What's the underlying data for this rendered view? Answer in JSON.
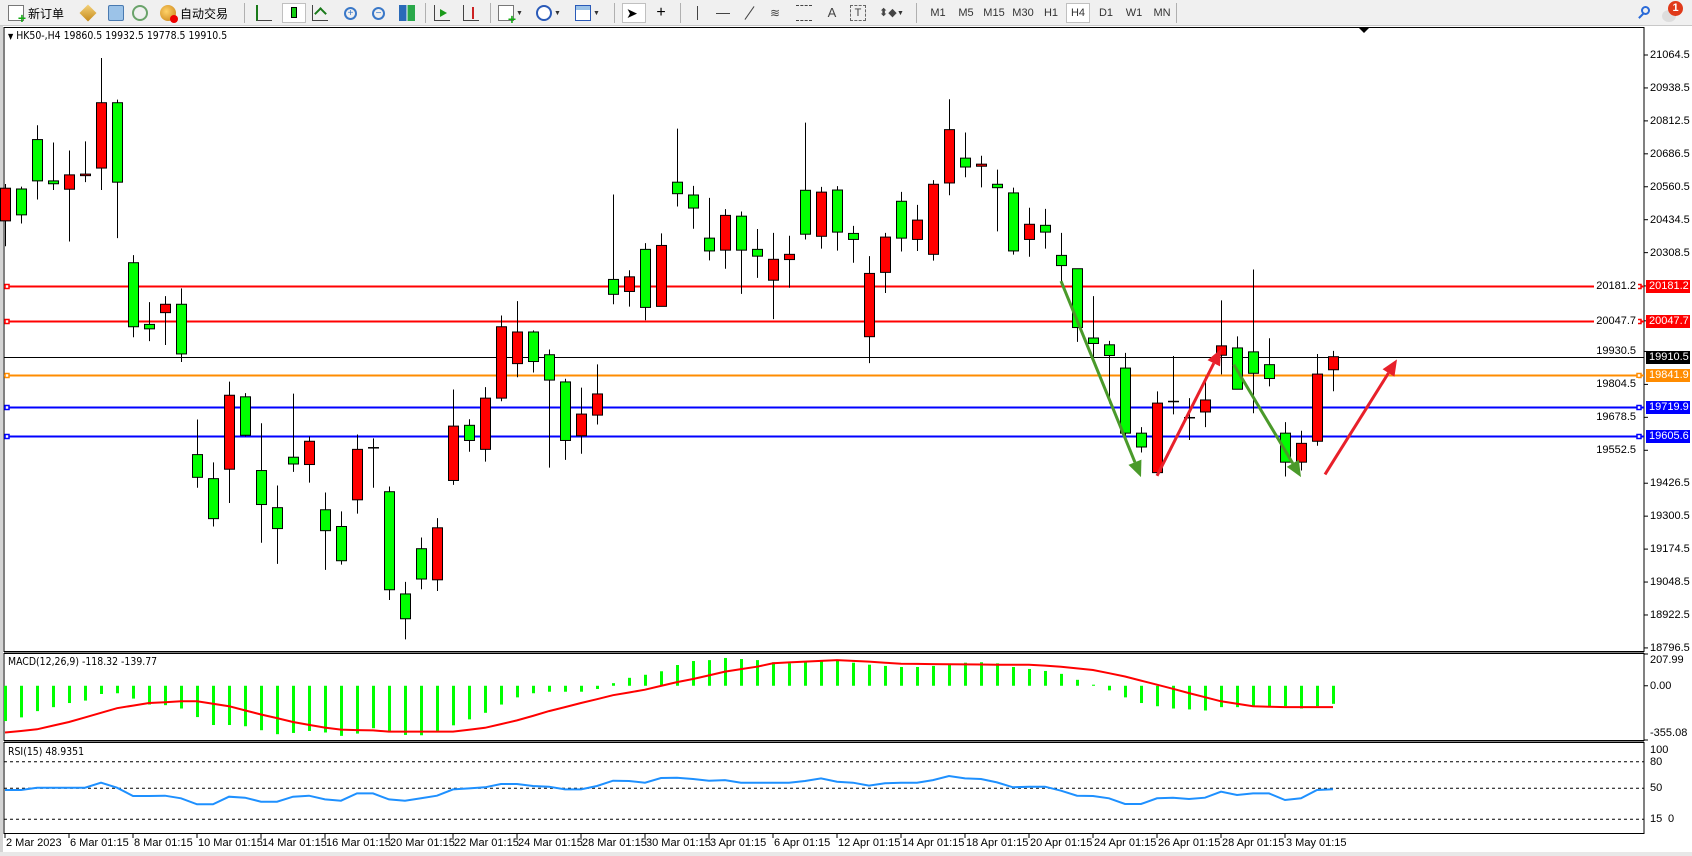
{
  "toolbar": {
    "new_order_label": "新订单",
    "auto_trading_label": "自动交易",
    "timeframes": [
      "M1",
      "M5",
      "M15",
      "M30",
      "H1",
      "H4",
      "D1",
      "W1",
      "MN"
    ],
    "active_timeframe": "H4",
    "notification_count": "1",
    "icons": [
      "new-order-icon",
      "market-watch-icon",
      "navigator-icon",
      "signals-icon",
      "auto-trading-icon",
      "bar-chart-icon",
      "candlestick-icon",
      "line-chart-icon",
      "zoom-in-icon",
      "zoom-out-icon",
      "tile-windows-icon",
      "auto-scroll-icon",
      "chart-shift-icon",
      "indicators-icon",
      "periods-icon",
      "templates-icon",
      "cursor-icon",
      "crosshair-icon",
      "vertical-line-icon",
      "horizontal-line-icon",
      "trendline-icon",
      "fibonacci-icon",
      "fibonacci-fan-icon",
      "text-icon",
      "text-label-icon",
      "arrows-icon",
      "search-icon",
      "notification-icon"
    ]
  },
  "chart": {
    "header": "HK50-,H4  19860.5 19932.5 19778.5 19910.5",
    "bull_color": "#ff0000",
    "bear_color": "#00ff00",
    "price_axis": [
      "21064.5",
      "20938.5",
      "20812.5",
      "20686.5",
      "20560.5",
      "20434.5",
      "20308.5",
      "20181.2",
      "20047.7",
      "19930.5",
      "19804.5",
      "19678.5",
      "19552.5",
      "19426.5",
      "19300.5",
      "19174.5",
      "19048.5",
      "18922.5",
      "18796.5"
    ],
    "horizontal_lines": [
      {
        "price": 20181.2,
        "label": "20181.2",
        "color": "#ff0000"
      },
      {
        "price": 20047.7,
        "label": "20047.7",
        "color": "#ff0000"
      },
      {
        "price": 19910.5,
        "label": "19910.5",
        "color": "#000000"
      },
      {
        "price": 19841.9,
        "label": "19841.9",
        "color": "#ff8c00"
      },
      {
        "price": 19719.9,
        "label": "19719.9",
        "color": "#0000ff"
      },
      {
        "price": 19605.6,
        "label": "19605.6",
        "color": "#0000ff"
      }
    ],
    "candles_ohlc": [
      [
        20430,
        20571,
        20333,
        20555
      ],
      [
        20552,
        20561,
        20420,
        20453
      ],
      [
        20741,
        20796,
        20512,
        20583
      ],
      [
        20583,
        20730,
        20548,
        20572
      ],
      [
        20551,
        20699,
        20351,
        20606
      ],
      [
        20603,
        20734,
        20578,
        20609
      ],
      [
        20632,
        21053,
        20548,
        20882
      ],
      [
        20882,
        20894,
        20364,
        20578
      ],
      [
        20270,
        20299,
        19985,
        20025
      ],
      [
        20034,
        20119,
        19970,
        20017
      ],
      [
        20079,
        20142,
        19955,
        20111
      ],
      [
        20111,
        20172,
        19890,
        19921
      ],
      [
        19536,
        19670,
        19409,
        19449
      ],
      [
        19444,
        19506,
        19261,
        19291
      ],
      [
        19480,
        19815,
        19351,
        19763
      ],
      [
        19757,
        19771,
        19605,
        19610
      ],
      [
        19475,
        19656,
        19199,
        19345
      ],
      [
        19333,
        19418,
        19118,
        19253
      ],
      [
        19526,
        19769,
        19470,
        19500
      ],
      [
        19498,
        19605,
        19429,
        19587
      ],
      [
        19325,
        19391,
        19095,
        19245
      ],
      [
        19261,
        19319,
        19115,
        19130
      ],
      [
        19363,
        19613,
        19310,
        19556
      ],
      [
        19562,
        19598,
        19409,
        19562
      ],
      [
        19394,
        19414,
        18980,
        19019
      ],
      [
        19003,
        19049,
        18829,
        18908
      ],
      [
        19176,
        19219,
        19021,
        19060
      ],
      [
        19057,
        19293,
        19014,
        19256
      ],
      [
        19437,
        19785,
        19420,
        19645
      ],
      [
        19648,
        19671,
        19547,
        19590
      ],
      [
        19556,
        19794,
        19509,
        19752
      ],
      [
        19752,
        20068,
        19740,
        20025
      ],
      [
        19884,
        20123,
        19832,
        20005
      ],
      [
        20005,
        20011,
        19850,
        19892
      ],
      [
        19918,
        19938,
        19486,
        19821
      ],
      [
        19814,
        19826,
        19516,
        19590
      ],
      [
        19608,
        19792,
        19539,
        19691
      ],
      [
        19687,
        19881,
        19651,
        19768
      ],
      [
        20206,
        20531,
        20111,
        20149
      ],
      [
        20160,
        20241,
        20102,
        20216
      ],
      [
        20321,
        20345,
        20050,
        20099
      ],
      [
        20103,
        20382,
        20103,
        20336
      ],
      [
        20578,
        20783,
        20485,
        20534
      ],
      [
        20529,
        20564,
        20400,
        20479
      ],
      [
        20364,
        20518,
        20279,
        20315
      ],
      [
        20318,
        20475,
        20247,
        20451
      ],
      [
        20448,
        20466,
        20151,
        20318
      ],
      [
        20321,
        20399,
        20212,
        20295
      ],
      [
        20203,
        20384,
        20054,
        20283
      ],
      [
        20282,
        20373,
        20174,
        20302
      ],
      [
        20547,
        20806,
        20359,
        20379
      ],
      [
        20371,
        20560,
        20324,
        20540
      ],
      [
        20548,
        20563,
        20316,
        20387
      ],
      [
        20382,
        20411,
        20270,
        20359
      ],
      [
        19987,
        20295,
        19886,
        20229
      ],
      [
        20233,
        20384,
        20154,
        20368
      ],
      [
        20505,
        20541,
        20313,
        20364
      ],
      [
        20359,
        20491,
        20315,
        20433
      ],
      [
        20302,
        20586,
        20278,
        20570
      ],
      [
        20575,
        20895,
        20528,
        20779
      ],
      [
        20670,
        20768,
        20597,
        20636
      ],
      [
        20639,
        20679,
        20558,
        20647
      ],
      [
        20570,
        20626,
        20390,
        20557
      ],
      [
        20537,
        20557,
        20301,
        20315
      ],
      [
        20359,
        20480,
        20293,
        20417
      ],
      [
        20413,
        20476,
        20324,
        20387
      ],
      [
        20298,
        20384,
        20194,
        20259
      ],
      [
        20247,
        20247,
        19967,
        20022
      ],
      [
        19982,
        20142,
        19898,
        19961
      ],
      [
        19956,
        19971,
        19732,
        19915
      ],
      [
        19867,
        19925,
        19604,
        19618
      ],
      [
        19618,
        19641,
        19544,
        19565
      ],
      [
        19467,
        19778,
        19455,
        19733
      ],
      [
        19739,
        19913,
        19690,
        19739
      ],
      [
        19677,
        19752,
        19592,
        19677
      ],
      [
        19699,
        19834,
        19641,
        19745
      ],
      [
        19916,
        20126,
        19843,
        19952
      ],
      [
        19944,
        19988,
        19786,
        19786
      ],
      [
        19929,
        20244,
        19694,
        19847
      ],
      [
        19880,
        19981,
        19797,
        19827
      ],
      [
        19618,
        19660,
        19452,
        19507
      ],
      [
        19507,
        19627,
        19475,
        19579
      ],
      [
        19587,
        19921,
        19570,
        19844
      ],
      [
        19860.5,
        19932.5,
        19778.5,
        19910.5
      ]
    ],
    "annotations": [
      {
        "type": "arrow",
        "color": "#4a9a2a",
        "from_bar": 66,
        "from_price": 20200,
        "to_bar": 71,
        "to_price": 19450
      },
      {
        "type": "arrow",
        "color": "#e8202a",
        "from_bar": 72,
        "from_price": 19455,
        "to_bar": 76,
        "to_price": 19940
      },
      {
        "type": "arrow",
        "color": "#4a9a2a",
        "from_bar": 76.8,
        "from_price": 19880,
        "to_bar": 81,
        "to_price": 19450
      },
      {
        "type": "arrow",
        "color": "#e8202a",
        "from_bar": 82.5,
        "from_price": 19460,
        "to_bar": 87,
        "to_price": 19900
      }
    ]
  },
  "macd": {
    "label": "MACD(12,26,9) -118.32 -139.77",
    "axis": [
      "207.99",
      "0.00",
      "-355.08"
    ],
    "range": [
      -355.08,
      207.99
    ],
    "hist_color": "#00ff00",
    "signal_color": "#ff0000",
    "main": [
      -231,
      -207,
      -166,
      -140,
      -113,
      -97,
      -54,
      -49,
      -84,
      -123,
      -127,
      -149,
      -205,
      -257,
      -257,
      -265,
      -291,
      -317,
      -309,
      -296,
      -306,
      -328,
      -313,
      -278,
      -296,
      -322,
      -324,
      -296,
      -259,
      -220,
      -177,
      -123,
      -76,
      -49,
      -39,
      -39,
      -39,
      -21,
      17,
      52,
      72,
      95,
      136,
      162,
      168,
      182,
      175,
      168,
      154,
      147,
      158,
      164,
      168,
      151,
      138,
      130,
      123,
      123,
      130,
      138,
      151,
      154,
      147,
      123,
      110,
      97,
      78,
      39,
      7,
      -30,
      -76,
      -113,
      -134,
      -149,
      -155,
      -162,
      -140,
      -140,
      -134,
      -134,
      -134,
      -149,
      -134,
      -118.32
    ],
    "signal": [
      -306,
      -296,
      -285,
      -261,
      -237,
      -207,
      -177,
      -147,
      -130,
      -113,
      -108,
      -102,
      -102,
      -118,
      -134,
      -161,
      -188,
      -212,
      -237,
      -256,
      -274,
      -287,
      -290,
      -292,
      -300,
      -300,
      -300,
      -300,
      -300,
      -288,
      -275,
      -251,
      -227,
      -197,
      -166,
      -140,
      -113,
      -88,
      -62,
      -44,
      -26,
      -1,
      24,
      44,
      68,
      93,
      109,
      125,
      147,
      153,
      158,
      163,
      168,
      163,
      158,
      151,
      144,
      143,
      142,
      141,
      140,
      139,
      138,
      138,
      138,
      132,
      125,
      114,
      103,
      82,
      61,
      34,
      7,
      -20,
      -48,
      -75,
      -102,
      -118,
      -134,
      -137,
      -140,
      -140,
      -140,
      -139.77
    ]
  },
  "rsi": {
    "label": "RSI(15) 48.9351",
    "axis": [
      "100",
      "80",
      "50",
      "15",
      "0"
    ],
    "levels": [
      80,
      50,
      15
    ],
    "line_color": "#1e90ff",
    "values": [
      48.1,
      48.1,
      50.7,
      50.7,
      50.7,
      50.7,
      56.3,
      50.7,
      41.3,
      41.3,
      41.7,
      38.7,
      31.9,
      31.9,
      40.5,
      39.4,
      34.9,
      34.9,
      40.5,
      41.7,
      37.5,
      36.0,
      44.3,
      44.3,
      37.5,
      36.0,
      38.7,
      41.7,
      48.8,
      49.9,
      51.1,
      54.8,
      54.8,
      52.6,
      51.8,
      48.8,
      48.8,
      52.6,
      58.6,
      58.2,
      56.3,
      61.6,
      62.0,
      60.5,
      58.6,
      59.3,
      56.3,
      56.3,
      56.3,
      56.3,
      58.2,
      61.2,
      57.5,
      56.3,
      53.0,
      55.6,
      56.3,
      56.3,
      59.3,
      63.9,
      61.2,
      60.5,
      56.7,
      51.1,
      51.8,
      51.8,
      47.3,
      41.7,
      41.3,
      38.7,
      32.3,
      32.3,
      38.7,
      39.4,
      37.9,
      39.4,
      46.2,
      42.4,
      44.3,
      44.3,
      36.8,
      38.7,
      48.1,
      48.94
    ]
  },
  "time_axis": [
    "2 Mar 2023",
    "6 Mar 01:15",
    "8 Mar 01:15",
    "10 Mar 01:15",
    "14 Mar 01:15",
    "16 Mar 01:15",
    "20 Mar 01:15",
    "22 Mar 01:15",
    "24 Mar 01:15",
    "28 Mar 01:15",
    "30 Mar 01:15",
    "3 Apr 01:15",
    "6 Apr 01:15",
    "12 Apr 01:15",
    "14 Apr 01:15",
    "18 Apr 01:15",
    "20 Apr 01:15",
    "24 Apr 01:15",
    "26 Apr 01:15",
    "28 Apr 01:15",
    "3 May 01:15"
  ]
}
